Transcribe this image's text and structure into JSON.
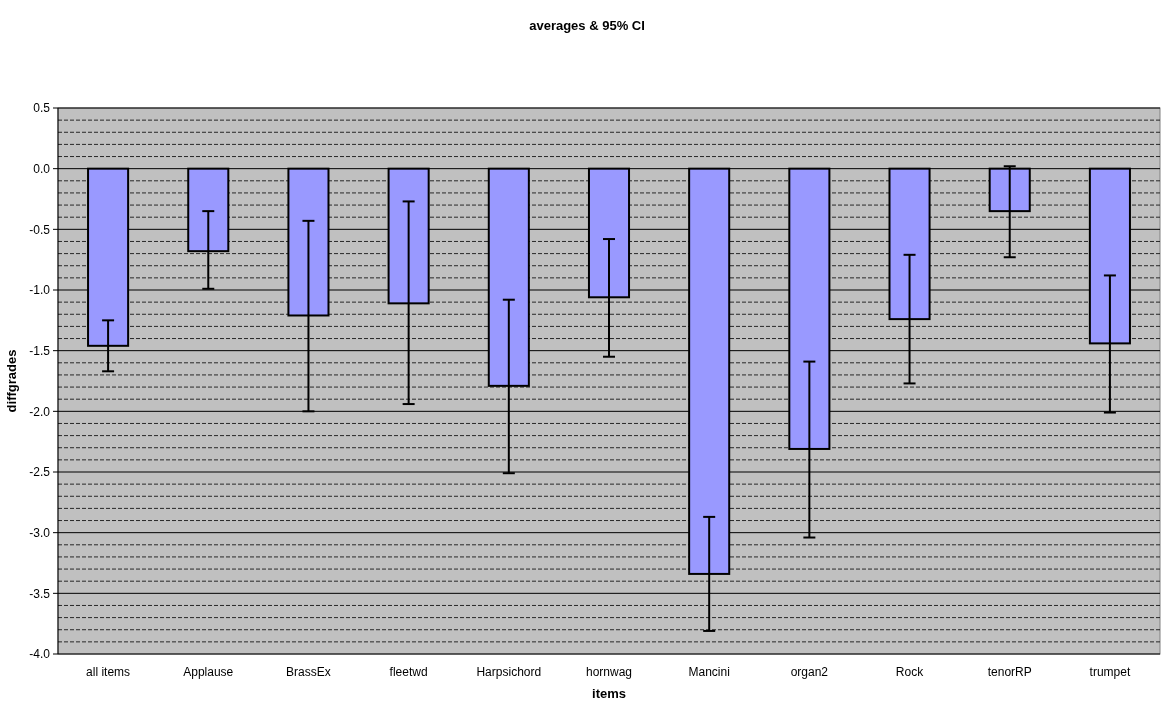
{
  "chart_data": {
    "type": "bar",
    "title": "averages & 95% CI",
    "xlabel": "items",
    "ylabel": "diffgrades",
    "categories": [
      "all items",
      "Applause",
      "BrassEx",
      "fleetwd",
      "Harpsichord",
      "hornwag",
      "Mancini",
      "organ2",
      "Rock",
      "tenorRP",
      "trumpet"
    ],
    "values": [
      -1.46,
      -0.68,
      -1.21,
      -1.11,
      -1.79,
      -1.06,
      -3.34,
      -2.31,
      -1.24,
      -0.35,
      -1.44
    ],
    "errors": [
      [
        -1.67,
        -1.25
      ],
      [
        -0.99,
        -0.35
      ],
      [
        -2.0,
        -0.43
      ],
      [
        -1.94,
        -0.27
      ],
      [
        -2.51,
        -1.08
      ],
      [
        -1.55,
        -0.58
      ],
      [
        -3.81,
        -2.87
      ],
      [
        -3.04,
        -1.59
      ],
      [
        -1.77,
        -0.71
      ],
      [
        -0.73,
        0.02
      ],
      [
        -2.01,
        -0.88
      ]
    ],
    "color": "#9999ff",
    "ylim": [
      -4,
      0.5
    ],
    "yticks": [
      {
        "value": -4,
        "label": "-4.0"
      },
      {
        "value": -3.9,
        "label": null
      },
      {
        "value": -3.8,
        "label": null
      },
      {
        "value": -3.7,
        "label": null
      },
      {
        "value": -3.6,
        "label": null
      },
      {
        "value": -3.5,
        "label": "-3.5"
      },
      {
        "value": -3.4,
        "label": null
      },
      {
        "value": -3.3,
        "label": null
      },
      {
        "value": -3.2,
        "label": null
      },
      {
        "value": -3.1,
        "label": null
      },
      {
        "value": -3,
        "label": "-3.0"
      },
      {
        "value": -2.9,
        "label": null
      },
      {
        "value": -2.8,
        "label": null
      },
      {
        "value": -2.7,
        "label": null
      },
      {
        "value": -2.6,
        "label": null
      },
      {
        "value": -2.5,
        "label": "-2.5"
      },
      {
        "value": -2.4,
        "label": null
      },
      {
        "value": -2.3,
        "label": null
      },
      {
        "value": -2.2,
        "label": null
      },
      {
        "value": -2.1,
        "label": null
      },
      {
        "value": -2,
        "label": "-2.0"
      },
      {
        "value": -1.9,
        "label": null
      },
      {
        "value": -1.8,
        "label": null
      },
      {
        "value": -1.7,
        "label": null
      },
      {
        "value": -1.6,
        "label": null
      },
      {
        "value": -1.5,
        "label": "-1.5"
      },
      {
        "value": -1.4,
        "label": null
      },
      {
        "value": -1.3,
        "label": null
      },
      {
        "value": -1.2,
        "label": null
      },
      {
        "value": -1.1,
        "label": null
      },
      {
        "value": -1,
        "label": "-1.0"
      },
      {
        "value": -0.9,
        "label": null
      },
      {
        "value": -0.8,
        "label": null
      },
      {
        "value": -0.7,
        "label": null
      },
      {
        "value": -0.6,
        "label": null
      },
      {
        "value": -0.5,
        "label": "-0.5"
      },
      {
        "value": -0.4,
        "label": null
      },
      {
        "value": -0.3,
        "label": null
      },
      {
        "value": -0.2,
        "label": null
      },
      {
        "value": -0.1,
        "label": null
      },
      {
        "value": 0,
        "label": "0.0"
      },
      {
        "value": 0.1,
        "label": null
      },
      {
        "value": 0.2,
        "label": null
      },
      {
        "value": 0.3,
        "label": null
      },
      {
        "value": 0.4,
        "label": null
      },
      {
        "value": 0.5,
        "label": "0.5"
      }
    ],
    "grid": "y"
  }
}
